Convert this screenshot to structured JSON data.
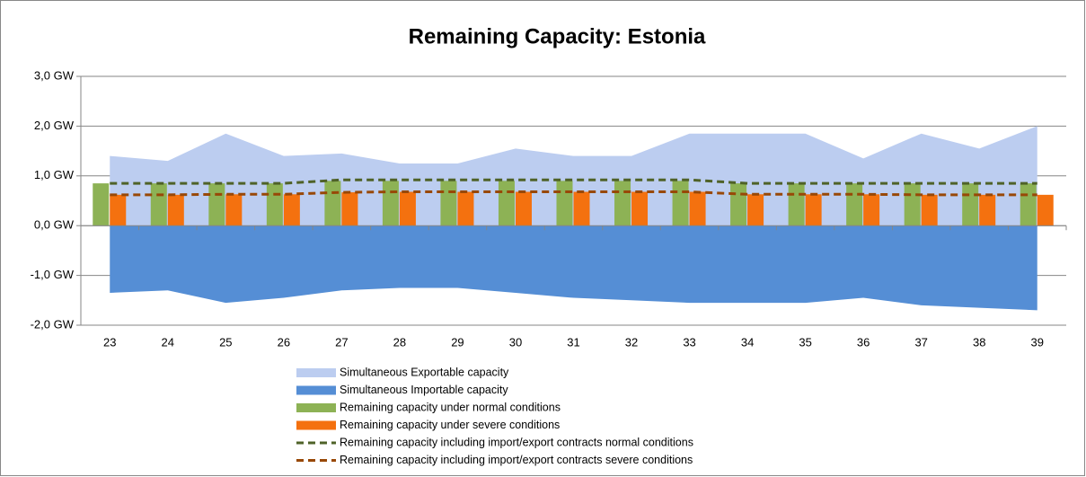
{
  "chart_data": {
    "type": "combo",
    "title": "Remaining Capacity: Estonia",
    "categories": [
      "23",
      "24",
      "25",
      "26",
      "27",
      "28",
      "29",
      "30",
      "31",
      "32",
      "33",
      "34",
      "35",
      "36",
      "37",
      "38",
      "39"
    ],
    "ylim": [
      -2,
      3
    ],
    "yticks": [
      {
        "value": -2,
        "label": "-2,0 GW"
      },
      {
        "value": -1,
        "label": "-1,0 GW"
      },
      {
        "value": 0,
        "label": "0,0 GW"
      },
      {
        "value": 1,
        "label": "1,0 GW"
      },
      {
        "value": 2,
        "label": "2,0 GW"
      },
      {
        "value": 3,
        "label": "3,0 GW"
      }
    ],
    "grid": true,
    "series": [
      {
        "name": "Simultaneous Exportable capacity",
        "type": "area",
        "color": "#bccdf0",
        "values": [
          1.4,
          1.3,
          1.85,
          1.4,
          1.45,
          1.25,
          1.25,
          1.55,
          1.4,
          1.4,
          1.85,
          1.85,
          1.85,
          1.35,
          1.85,
          1.55,
          2.0
        ]
      },
      {
        "name": "Simultaneous Importable capacity",
        "type": "area",
        "color": "#558ed5",
        "values": [
          -1.35,
          -1.3,
          -1.55,
          -1.45,
          -1.3,
          -1.25,
          -1.25,
          -1.35,
          -1.45,
          -1.5,
          -1.55,
          -1.55,
          -1.55,
          -1.45,
          -1.6,
          -1.65,
          -1.7
        ]
      },
      {
        "name": "Remaining capacity under normal conditions",
        "type": "bar",
        "color": "#8db255",
        "values": [
          0.85,
          0.85,
          0.85,
          0.85,
          0.9,
          0.9,
          0.9,
          0.9,
          0.9,
          0.9,
          0.9,
          0.85,
          0.85,
          0.85,
          0.85,
          0.85,
          0.85
        ]
      },
      {
        "name": "Remaining capacity under severe conditions",
        "type": "bar",
        "color": "#f4710f",
        "values": [
          0.62,
          0.62,
          0.63,
          0.63,
          0.67,
          0.68,
          0.68,
          0.68,
          0.68,
          0.68,
          0.68,
          0.63,
          0.63,
          0.63,
          0.62,
          0.62,
          0.62
        ]
      },
      {
        "name": "Remaining capacity including import/export contracts normal conditions",
        "type": "line",
        "color": "#4f6228",
        "values": [
          0.85,
          0.85,
          0.85,
          0.85,
          0.92,
          0.92,
          0.92,
          0.92,
          0.92,
          0.92,
          0.92,
          0.85,
          0.85,
          0.85,
          0.85,
          0.85,
          0.85
        ]
      },
      {
        "name": "Remaining capacity including import/export contracts severe conditions",
        "type": "line",
        "color": "#984807",
        "values": [
          0.62,
          0.62,
          0.63,
          0.63,
          0.67,
          0.68,
          0.68,
          0.68,
          0.68,
          0.68,
          0.68,
          0.63,
          0.63,
          0.63,
          0.62,
          0.62,
          0.62
        ]
      }
    ]
  }
}
